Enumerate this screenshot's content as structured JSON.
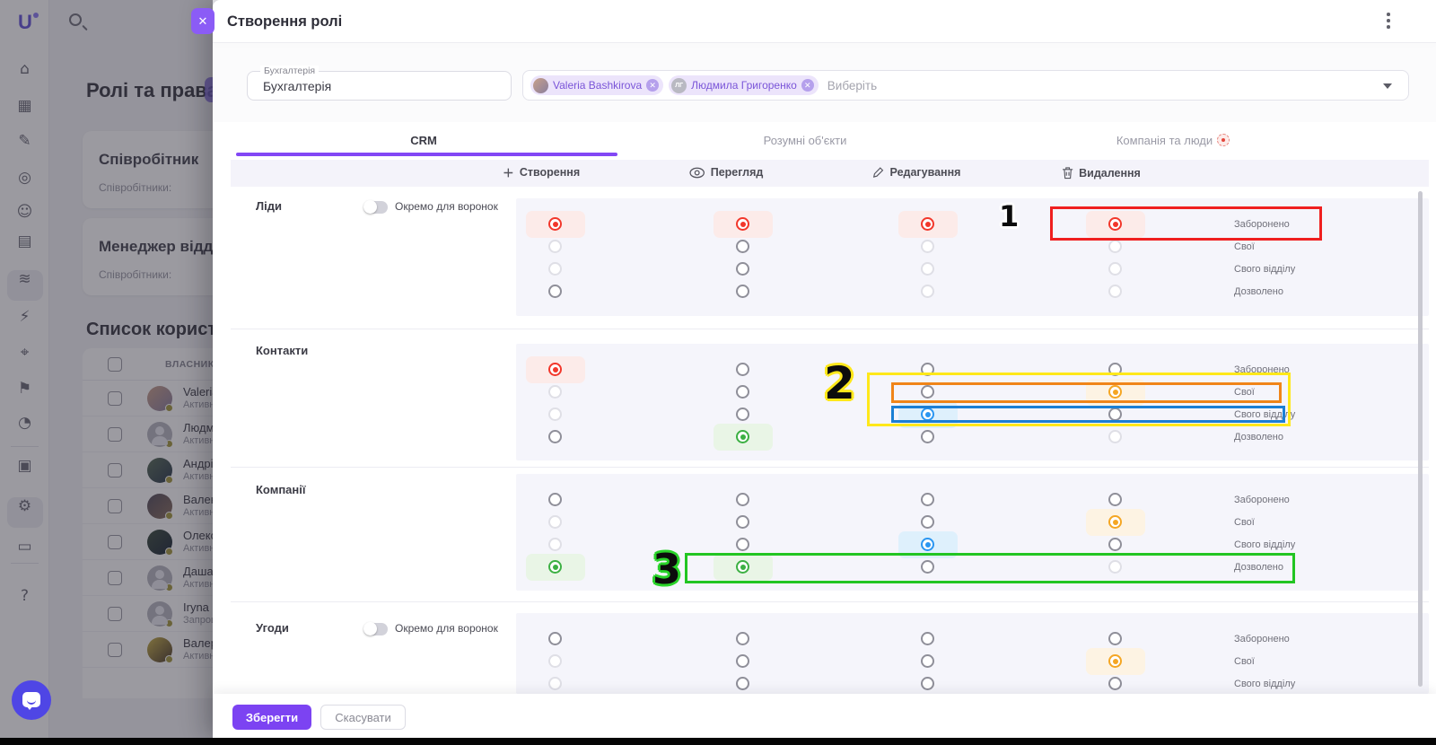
{
  "app": {
    "logo": "U",
    "sidebar_icons": [
      {
        "name": "home-icon",
        "glyph": "⌂"
      },
      {
        "name": "company-icon",
        "glyph": "▦"
      },
      {
        "name": "feed-icon",
        "glyph": "✎"
      },
      {
        "name": "tasks-icon",
        "glyph": "◎"
      },
      {
        "name": "contacts-icon",
        "glyph": "☺"
      },
      {
        "name": "calendar-icon",
        "glyph": "▤"
      },
      {
        "name": "funnels-icon",
        "glyph": "≋"
      },
      {
        "name": "automation-icon",
        "glyph": "⚡"
      },
      {
        "name": "recognition-icon",
        "glyph": "⌖"
      },
      {
        "name": "requests-icon",
        "glyph": "⚑"
      },
      {
        "name": "analytics-icon",
        "glyph": "◔"
      },
      {
        "name": "marketplace-icon",
        "glyph": "▣"
      },
      {
        "name": "settings-icon",
        "glyph": "⚙"
      },
      {
        "name": "payments-icon",
        "glyph": "▭"
      },
      {
        "name": "support-icon",
        "glyph": "?"
      }
    ],
    "page": {
      "title": "Ролі та права",
      "cards": [
        {
          "title": "Співробітник",
          "subtitle": "Співробітники:"
        },
        {
          "title": "Менеджер відділ",
          "subtitle": "Співробітники:"
        }
      ],
      "list_title": "Список користу",
      "table_header": "ВЛАСНИКИ РОЛІ",
      "users": [
        {
          "name": "Valeria Ba",
          "status": "Активний",
          "avatar": "photo1"
        },
        {
          "name": "Людмила",
          "status": "Активний",
          "avatar": "ph"
        },
        {
          "name": "Андрій Ка",
          "status": "Активний",
          "avatar": "photo2"
        },
        {
          "name": "Валентина",
          "status": "Активний",
          "avatar": "photo3"
        },
        {
          "name": "Олексій Ге",
          "status": "Активний",
          "avatar": "photo4"
        },
        {
          "name": "Даша Глу",
          "status": "Активний",
          "avatar": "ph"
        },
        {
          "name": "Iryna Serb",
          "status": "Запрошено",
          "avatar": "ph"
        },
        {
          "name": "Валерія Ба",
          "status": "Активний",
          "avatar": "photo5"
        }
      ]
    }
  },
  "modal": {
    "title": "Створення ролі",
    "role_field": {
      "label": "Бухгалтерія",
      "value": "Бухгалтерія"
    },
    "members_field": {
      "placeholder": "Виберіть",
      "chips": [
        {
          "name": "Valeria Bashkirova",
          "avatar": "photo",
          "initials": ""
        },
        {
          "name": "Людмила Григоренко",
          "avatar": "initials",
          "initials": "ЛГ"
        }
      ]
    },
    "tabs": [
      {
        "label": "CRM",
        "active": true,
        "badge": false
      },
      {
        "label": "Розумні об'єкти",
        "active": false,
        "badge": false
      },
      {
        "label": "Компанія та люди",
        "active": false,
        "badge": true
      }
    ],
    "columns": [
      "Створення",
      "Перегляд",
      "Редагування",
      "Видалення"
    ],
    "option_labels": [
      "Заборонено",
      "Свої",
      "Свого відділу",
      "Дозволено"
    ],
    "groups": [
      {
        "name": "Ліди",
        "toggle": "Окремо для воронок",
        "rows": 4,
        "cols": [
          [
            "sel-red",
            "dim",
            "dim",
            "off"
          ],
          [
            "sel-red",
            "off",
            "off",
            "off"
          ],
          [
            "sel-red",
            "dim",
            "dim",
            "dim"
          ],
          [
            "sel-red",
            "dim",
            "dim",
            "dim"
          ]
        ]
      },
      {
        "name": "Контакти",
        "toggle": null,
        "rows": 4,
        "cols": [
          [
            "sel-red",
            "dim",
            "dim",
            "off"
          ],
          [
            "off",
            "off",
            "off",
            "sel-green"
          ],
          [
            "off",
            "off",
            "sel-blue",
            "off"
          ],
          [
            "off",
            "sel-orange",
            "off",
            "dim"
          ]
        ]
      },
      {
        "name": "Компанії",
        "toggle": null,
        "rows": 4,
        "cols": [
          [
            "off",
            "dim",
            "dim",
            "sel-green"
          ],
          [
            "off",
            "off",
            "off",
            "sel-green"
          ],
          [
            "off",
            "off",
            "sel-blue",
            "off"
          ],
          [
            "off",
            "sel-orange",
            "off",
            "dim"
          ]
        ]
      },
      {
        "name": "Угоди",
        "toggle": "Окремо для воронок",
        "rows": 3,
        "cols": [
          [
            "off",
            "dim",
            "dim"
          ],
          [
            "off",
            "off",
            "off"
          ],
          [
            "off",
            "off",
            "off"
          ],
          [
            "off",
            "sel-orange",
            "off"
          ]
        ]
      }
    ],
    "footer": {
      "save": "Зберегти",
      "cancel": "Скасувати"
    }
  },
  "annotations": [
    {
      "num": "1",
      "box_color": "#ef1f1f",
      "halo": "#ffffff"
    },
    {
      "num": "2",
      "box_color": "#ffe81a",
      "inner1_color": "#f08519",
      "inner2_color": "#1b7fd4",
      "halo": "#ffe81a"
    },
    {
      "num": "3",
      "box_color": "#22c522",
      "halo": "#2ad32a"
    }
  ],
  "colors": {
    "accent": "#8247f5",
    "save_button": "#7c43f2",
    "denied": "#f2372b",
    "allowed": "#3cb043",
    "department": "#2b96f1",
    "own": "#f5a623"
  }
}
